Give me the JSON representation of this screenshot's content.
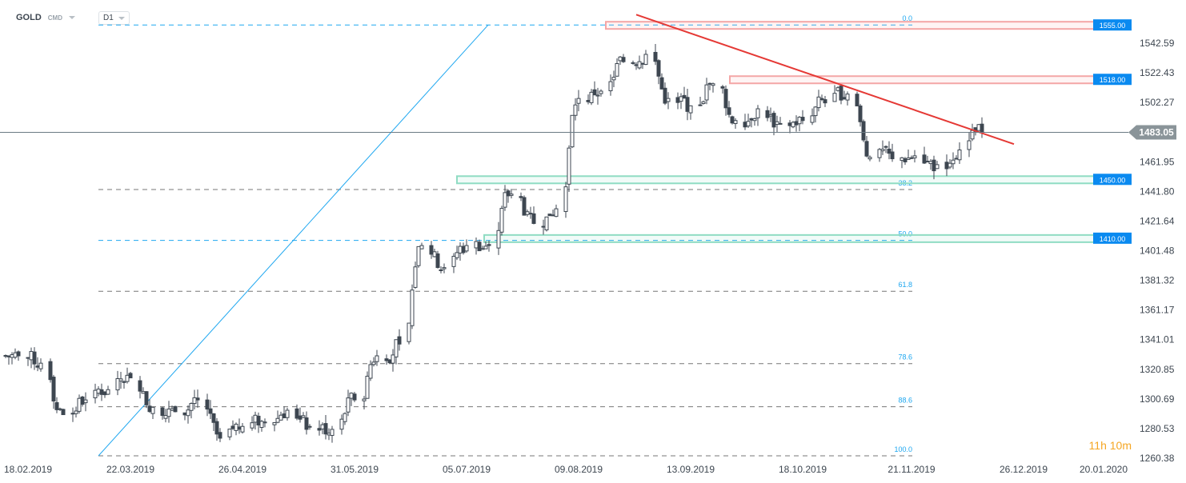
{
  "header": {
    "symbol": "GOLD",
    "type": "CMD",
    "timeframe": "D1"
  },
  "timer": "11h 10m",
  "chart_data": {
    "type": "candlestick",
    "title": "",
    "ylim": [
      1260.38,
      1562
    ],
    "y_ticks": [
      "1542.59",
      "1522.43",
      "1502.27",
      "1461.95",
      "1441.80",
      "1421.64",
      "1401.48",
      "1381.32",
      "1361.17",
      "1341.01",
      "1320.85",
      "1300.69",
      "1280.53",
      "1260.38"
    ],
    "x_ticks": [
      "18.02.2019",
      "22.03.2019",
      "26.04.2019",
      "31.05.2019",
      "05.07.2019",
      "09.08.2019",
      "13.09.2019",
      "18.10.2019",
      "21.11.2019",
      "26.12.2019",
      "20.01.2020"
    ],
    "current_price": "1483.05",
    "approx_weekly_close": [
      [
        "11.02.2019",
        1330
      ],
      [
        "18.02.2019",
        1325
      ],
      [
        "25.02.2019",
        1290
      ],
      [
        "04.03.2019",
        1300
      ],
      [
        "11.03.2019",
        1307
      ],
      [
        "18.03.2019",
        1315
      ],
      [
        "25.03.2019",
        1295
      ],
      [
        "01.04.2019",
        1292
      ],
      [
        "08.04.2019",
        1300
      ],
      [
        "15.04.2019",
        1274
      ],
      [
        "22.04.2019",
        1282
      ],
      [
        "29.04.2019",
        1285
      ],
      [
        "06.05.2019",
        1293
      ],
      [
        "13.05.2019",
        1282
      ],
      [
        "20.05.2019",
        1280
      ],
      [
        "27.05.2019",
        1300
      ],
      [
        "03.06.2019",
        1330
      ],
      [
        "10.06.2019",
        1338
      ],
      [
        "17.06.2019",
        1405
      ],
      [
        "24.06.2019",
        1390
      ],
      [
        "01.07.2019",
        1405
      ],
      [
        "08.07.2019",
        1405
      ],
      [
        "15.07.2019",
        1440
      ],
      [
        "22.07.2019",
        1420
      ],
      [
        "29.07.2019",
        1430
      ],
      [
        "05.08.2019",
        1505
      ],
      [
        "12.08.2019",
        1510
      ],
      [
        "19.08.2019",
        1530
      ],
      [
        "26.08.2019",
        1535
      ],
      [
        "02.09.2019",
        1505
      ],
      [
        "09.09.2019",
        1500
      ],
      [
        "16.09.2019",
        1515
      ],
      [
        "23.09.2019",
        1490
      ],
      [
        "30.09.2019",
        1498
      ],
      [
        "07.10.2019",
        1488
      ],
      [
        "14.10.2019",
        1490
      ],
      [
        "21.10.2019",
        1502
      ],
      [
        "28.10.2019",
        1508
      ],
      [
        "04.11.2019",
        1465
      ],
      [
        "11.11.2019",
        1464
      ],
      [
        "18.11.2019",
        1466
      ],
      [
        "25.11.2019",
        1460
      ],
      [
        "02.12.2019",
        1470
      ],
      [
        "09.12.2019",
        1482
      ]
    ],
    "fibonacci": {
      "high": 1555,
      "low": 1262,
      "levels": [
        "0.0",
        "38.2",
        "50.0",
        "61.8",
        "78.6",
        "88.6",
        "100.0"
      ]
    },
    "zones": [
      {
        "label": "1555.00",
        "price": 1555,
        "color": "#f4a6a6"
      },
      {
        "label": "1518.00",
        "price": 1518,
        "color": "#f4a6a6"
      },
      {
        "label": "1450.00",
        "price": 1450,
        "color": "#8fdcc3"
      },
      {
        "label": "1410.00",
        "price": 1410,
        "color": "#8fdcc3"
      }
    ],
    "trendline": {
      "color": "#e53935",
      "from": [
        "27.08.2019",
        1562
      ],
      "to": [
        "23.12.2019",
        1474
      ]
    },
    "colors": {
      "candle": "#3d4650",
      "accent": "#0a8af0",
      "fib_line": "#1ea7f0"
    }
  }
}
